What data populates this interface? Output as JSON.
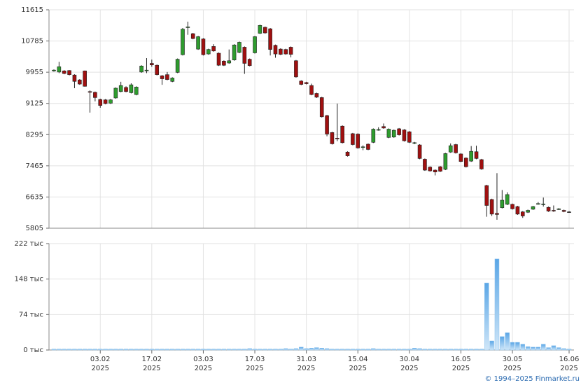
{
  "chart_data": [
    {
      "type": "candlestick",
      "open": [
        9990,
        9960,
        9990,
        10000,
        9880,
        9750,
        9990,
        9440,
        9420,
        9230,
        9220,
        9130,
        9270,
        9440,
        9550,
        9410,
        9360,
        9960,
        10000,
        10190,
        10140,
        9860,
        9890,
        9710,
        9950,
        10420,
        11150,
        10980,
        10570,
        10840,
        10440,
        10640,
        10460,
        10250,
        10200,
        10280,
        10480,
        10620,
        10300,
        10470,
        10990,
        11150,
        11110,
        10670,
        10570,
        10560,
        10620,
        10260,
        9720,
        9680,
        9600,
        9390,
        9280,
        8800,
        8350,
        8200,
        8520,
        7830,
        8320,
        8310,
        7960,
        8040,
        8090,
        8420,
        8510,
        8220,
        8230,
        8450,
        8420,
        8370,
        8070,
        8020,
        7640,
        7430,
        7350,
        7440,
        7370,
        7830,
        8030,
        7780,
        7670,
        7590,
        7840,
        7630,
        6940,
        6570,
        6200,
        6350,
        6440,
        6440,
        6380,
        6240,
        6230,
        6310,
        6450,
        6440,
        6360,
        6280,
        6310,
        6280,
        6240
      ],
      "close": [
        10010,
        10100,
        9920,
        9890,
        9710,
        9640,
        9580,
        9420,
        9280,
        9070,
        9120,
        9220,
        9530,
        9600,
        9440,
        9620,
        9560,
        10120,
        10010,
        10150,
        9890,
        9780,
        9760,
        9800,
        10300,
        11100,
        11160,
        10850,
        10900,
        10420,
        10560,
        10520,
        10140,
        10140,
        10260,
        10680,
        10750,
        10190,
        10130,
        10900,
        11200,
        11000,
        10560,
        10440,
        10430,
        10440,
        10430,
        9830,
        9630,
        9650,
        9360,
        9290,
        8770,
        8310,
        8050,
        8180,
        8080,
        7730,
        8030,
        7940,
        7970,
        7900,
        8440,
        8430,
        8470,
        8440,
        8410,
        8290,
        8130,
        8090,
        8080,
        7660,
        7350,
        7330,
        7300,
        7320,
        7790,
        8000,
        7810,
        7580,
        7440,
        7850,
        7660,
        7380,
        6410,
        6180,
        6170,
        6550,
        6700,
        6320,
        6180,
        6130,
        6280,
        6380,
        6460,
        6450,
        6260,
        6260,
        6320,
        6250,
        6240
      ],
      "high": [
        10030,
        10230,
        10010,
        10010,
        9900,
        9770,
        10000,
        9470,
        9440,
        9250,
        9240,
        9240,
        9550,
        9700,
        9580,
        9660,
        9580,
        10140,
        10330,
        10290,
        10160,
        9880,
        9960,
        9820,
        10320,
        11130,
        11300,
        11000,
        10920,
        10860,
        10580,
        10700,
        10480,
        10270,
        10560,
        10700,
        10770,
        10640,
        10320,
        10920,
        11220,
        11170,
        11130,
        10690,
        10590,
        10580,
        10640,
        10280,
        9740,
        9700,
        9650,
        9410,
        9300,
        8820,
        8370,
        9120,
        8540,
        7850,
        8340,
        8330,
        8010,
        8060,
        8460,
        8490,
        8590,
        8460,
        8430,
        8470,
        8440,
        8390,
        8100,
        8040,
        7660,
        7450,
        7370,
        7460,
        7810,
        8060,
        8050,
        7800,
        7690,
        7990,
        8000,
        7650,
        6960,
        6590,
        7270,
        6820,
        6760,
        6460,
        6400,
        6260,
        6300,
        6400,
        6500,
        6620,
        6380,
        6410,
        6340,
        6300,
        6260
      ],
      "low": [
        9970,
        9930,
        9900,
        9870,
        9530,
        9620,
        9570,
        8880,
        9180,
        9010,
        9100,
        9110,
        9250,
        9420,
        9420,
        9390,
        9340,
        9940,
        9930,
        10100,
        9870,
        9620,
        9740,
        9690,
        9930,
        10400,
        10950,
        10830,
        10550,
        10400,
        10420,
        10500,
        10120,
        10120,
        10180,
        10260,
        10460,
        9910,
        10110,
        10450,
        10970,
        10980,
        10400,
        10340,
        10410,
        10420,
        10350,
        9810,
        9610,
        9630,
        9340,
        9270,
        8750,
        8250,
        8030,
        8120,
        8060,
        7710,
        8010,
        7920,
        7880,
        7880,
        8070,
        8400,
        8450,
        8200,
        8210,
        8270,
        8110,
        8070,
        8040,
        7640,
        7330,
        7310,
        7210,
        7300,
        7350,
        7810,
        7790,
        7560,
        7420,
        7570,
        7640,
        7360,
        6110,
        6130,
        6030,
        6330,
        6420,
        6300,
        6160,
        6080,
        6210,
        6290,
        6430,
        6380,
        6240,
        6240,
        6290,
        6230,
        6220
      ],
      "up_color": "#2e9c2e",
      "down_color": "#a01010",
      "ylim": [
        5805,
        11615
      ],
      "yticks": [
        5805,
        6635,
        7465,
        8295,
        9125,
        9955,
        10785,
        11615
      ],
      "grid": true
    },
    {
      "type": "bar",
      "categories": [
        null,
        null,
        null,
        null,
        null,
        null,
        null,
        null,
        null,
        "03.02\n2025",
        null,
        null,
        null,
        null,
        null,
        null,
        null,
        null,
        null,
        "17.02\n2025",
        null,
        null,
        null,
        null,
        null,
        null,
        null,
        null,
        null,
        "03.03\n2025",
        null,
        null,
        null,
        null,
        null,
        null,
        null,
        null,
        null,
        "17.03\n2025",
        null,
        null,
        null,
        null,
        null,
        null,
        null,
        null,
        null,
        "31.03\n2025",
        null,
        null,
        null,
        null,
        null,
        null,
        null,
        null,
        null,
        "15.04\n2025",
        null,
        null,
        null,
        null,
        null,
        null,
        null,
        null,
        null,
        "30.04\n2025",
        null,
        null,
        null,
        null,
        null,
        null,
        null,
        null,
        null,
        "16.05\n2025",
        null,
        null,
        null,
        null,
        null,
        null,
        null,
        null,
        null,
        "30.05\n2025",
        null,
        null,
        null,
        null,
        null,
        null,
        null,
        null,
        null,
        null,
        "16.06\n2025"
      ],
      "values": [
        2,
        2,
        2,
        2,
        2,
        2,
        2,
        2,
        2,
        2,
        2,
        2,
        2,
        2,
        2,
        2,
        2,
        2,
        2,
        2,
        2,
        2,
        2,
        2,
        2,
        2,
        2,
        2,
        2,
        2,
        2,
        2,
        2,
        2,
        2,
        2,
        2,
        2,
        3,
        2,
        2,
        2,
        2,
        2,
        2,
        3,
        2,
        3,
        6,
        3,
        4,
        5,
        4,
        3,
        2,
        2,
        2,
        2,
        2,
        2,
        2,
        2,
        3,
        2,
        2,
        2,
        2,
        2,
        2,
        2,
        4,
        3,
        2,
        2,
        2,
        2,
        2,
        2,
        2,
        2,
        2,
        2,
        2,
        2,
        140,
        19,
        190,
        28,
        36,
        16,
        16,
        12,
        7,
        6,
        6,
        12,
        5,
        9,
        5,
        3,
        2
      ],
      "color": "#8ec4ee",
      "ylim": [
        0,
        222
      ],
      "yticks": [
        {
          "value": 0,
          "label": "0 тыс"
        },
        {
          "value": 74,
          "label": "74 тыс"
        },
        {
          "value": 148,
          "label": "148 тыс"
        },
        {
          "value": 222,
          "label": "222 тыс"
        }
      ],
      "grid": true
    }
  ],
  "source": "© 1994–2025 Finmarket.ru"
}
